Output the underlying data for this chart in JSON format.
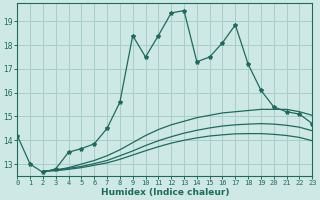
{
  "bg_color": "#cde8e5",
  "grid_color": "#a8ceca",
  "line_color": "#1e6b5e",
  "series1_x": [
    0,
    1,
    2,
    3,
    4,
    5,
    6,
    7,
    8,
    9,
    10,
    11,
    12,
    13,
    14,
    15,
    16,
    17,
    18,
    19,
    20,
    21,
    22,
    23
  ],
  "series1_y": [
    14.2,
    13.0,
    12.65,
    12.8,
    13.5,
    13.65,
    13.85,
    14.5,
    15.6,
    18.4,
    17.5,
    18.4,
    19.35,
    19.45,
    17.3,
    17.5,
    18.1,
    18.85,
    17.2,
    16.1,
    15.4,
    15.2,
    15.1,
    14.7
  ],
  "series2_x": [
    2,
    3,
    4,
    5,
    6,
    7,
    8,
    9,
    10,
    11,
    12,
    13,
    14,
    15,
    16,
    17,
    18,
    19,
    20,
    21,
    22,
    23
  ],
  "series2_y": [
    12.7,
    12.75,
    12.85,
    13.0,
    13.15,
    13.35,
    13.6,
    13.9,
    14.2,
    14.45,
    14.65,
    14.8,
    14.95,
    15.05,
    15.15,
    15.2,
    15.25,
    15.3,
    15.3,
    15.3,
    15.2,
    15.05
  ],
  "series3_x": [
    2,
    3,
    4,
    5,
    6,
    7,
    8,
    9,
    10,
    11,
    12,
    13,
    14,
    15,
    16,
    17,
    18,
    19,
    20,
    21,
    22,
    23
  ],
  "series3_y": [
    12.7,
    12.75,
    12.82,
    12.9,
    13.02,
    13.15,
    13.35,
    13.55,
    13.78,
    13.98,
    14.15,
    14.3,
    14.42,
    14.52,
    14.6,
    14.65,
    14.68,
    14.7,
    14.68,
    14.63,
    14.55,
    14.4
  ],
  "series4_x": [
    2,
    3,
    4,
    5,
    6,
    7,
    8,
    9,
    10,
    11,
    12,
    13,
    14,
    15,
    16,
    17,
    18,
    19,
    20,
    21,
    22,
    23
  ],
  "series4_y": [
    12.7,
    12.72,
    12.78,
    12.85,
    12.95,
    13.05,
    13.2,
    13.38,
    13.56,
    13.73,
    13.88,
    14.0,
    14.1,
    14.18,
    14.23,
    14.27,
    14.28,
    14.28,
    14.25,
    14.2,
    14.12,
    13.98
  ],
  "xlabel": "Humidex (Indice chaleur)",
  "xlim": [
    0,
    23
  ],
  "ylim": [
    12.5,
    19.75
  ],
  "yticks": [
    13,
    14,
    15,
    16,
    17,
    18,
    19
  ],
  "xticks": [
    0,
    1,
    2,
    3,
    4,
    5,
    6,
    7,
    8,
    9,
    10,
    11,
    12,
    13,
    14,
    15,
    16,
    17,
    18,
    19,
    20,
    21,
    22,
    23
  ]
}
